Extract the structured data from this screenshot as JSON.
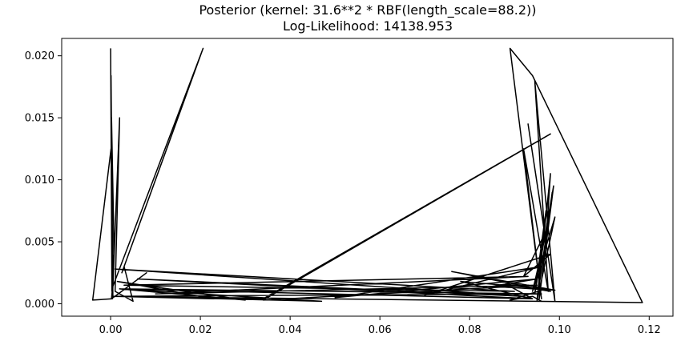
{
  "chart_data": {
    "type": "line",
    "title": "Posterior (kernel: 31.6**2 * RBF(length_scale=88.2))",
    "subtitle": "Log-Likelihood: 14138.953",
    "xlabel": "",
    "ylabel": "",
    "xlim": [
      -0.0109,
      0.1253
    ],
    "ylim": [
      -0.001,
      0.0214
    ],
    "x_ticks": [
      0.0,
      0.02,
      0.04,
      0.06,
      0.08,
      0.1,
      0.12
    ],
    "x_tick_labels": [
      "0.00",
      "0.02",
      "0.04",
      "0.06",
      "0.08",
      "0.10",
      "0.12"
    ],
    "y_ticks": [
      0.0,
      0.005,
      0.01,
      0.015,
      0.02
    ],
    "y_tick_labels": [
      "0.000",
      "0.005",
      "0.010",
      "0.015",
      "0.020"
    ],
    "grid": false,
    "line_color": "#000000",
    "series": [
      {
        "x": [
          0.0,
          0.0003,
          0.0001,
          0.0005,
          0.0002,
          0.0008,
          0.0003,
          0.0206,
          0.0025,
          0.0204,
          0.003,
          0.005,
          0.001,
          0.002,
          0.0004,
          -0.004,
          0.0001,
          0.0006,
          0.0002,
          0.008,
          0.001,
          0.023,
          0.0015,
          0.03,
          0.002,
          0.047,
          0.003,
          0.034,
          0.098,
          0.034,
          0.095,
          0.01,
          0.093,
          0.003,
          0.09,
          0.001,
          0.092,
          0.006,
          0.094,
          0.002,
          0.096,
          0.0005,
          0.1185,
          0.094,
          0.089,
          0.096,
          0.092,
          0.0975,
          0.0945,
          0.099,
          0.093,
          0.097,
          0.098,
          0.095,
          0.097,
          0.0945,
          0.0987,
          0.0955,
          0.0984,
          0.095,
          0.099,
          0.094,
          0.0972,
          0.092,
          0.098,
          0.07,
          0.096,
          0.05,
          0.095,
          0.085,
          0.099,
          0.076,
          0.098,
          0.088,
          0.094,
          0.078,
          0.097,
          0.089,
          0.094,
          0.096
        ],
        "y": [
          0.0206,
          0.001,
          0.0184,
          0.0005,
          0.015,
          0.004,
          0.0012,
          0.0206,
          0.0025,
          0.0204,
          0.003,
          0.0002,
          0.001,
          0.015,
          0.0004,
          0.0003,
          0.0125,
          0.002,
          0.0004,
          0.0025,
          0.0006,
          0.0004,
          0.0018,
          0.0003,
          0.0012,
          0.0002,
          0.0006,
          0.0004,
          0.0137,
          0.0003,
          0.0015,
          0.0008,
          0.0022,
          0.0015,
          0.001,
          0.0028,
          0.0006,
          0.002,
          0.0004,
          0.0012,
          0.0008,
          0.0006,
          0.0001,
          0.0184,
          0.0206,
          0.0004,
          0.0125,
          0.001,
          0.018,
          0.0002,
          0.0145,
          0.005,
          0.0105,
          0.0003,
          0.0075,
          0.0008,
          0.0095,
          0.0004,
          0.009,
          0.0002,
          0.007,
          0.001,
          0.006,
          0.0022,
          0.004,
          0.0007,
          0.003,
          0.0005,
          0.002,
          0.0014,
          0.0011,
          0.0026,
          0.001,
          0.0016,
          0.0004,
          0.0018,
          0.0012,
          0.0003,
          0.0006,
          0.0002
        ]
      }
    ]
  }
}
